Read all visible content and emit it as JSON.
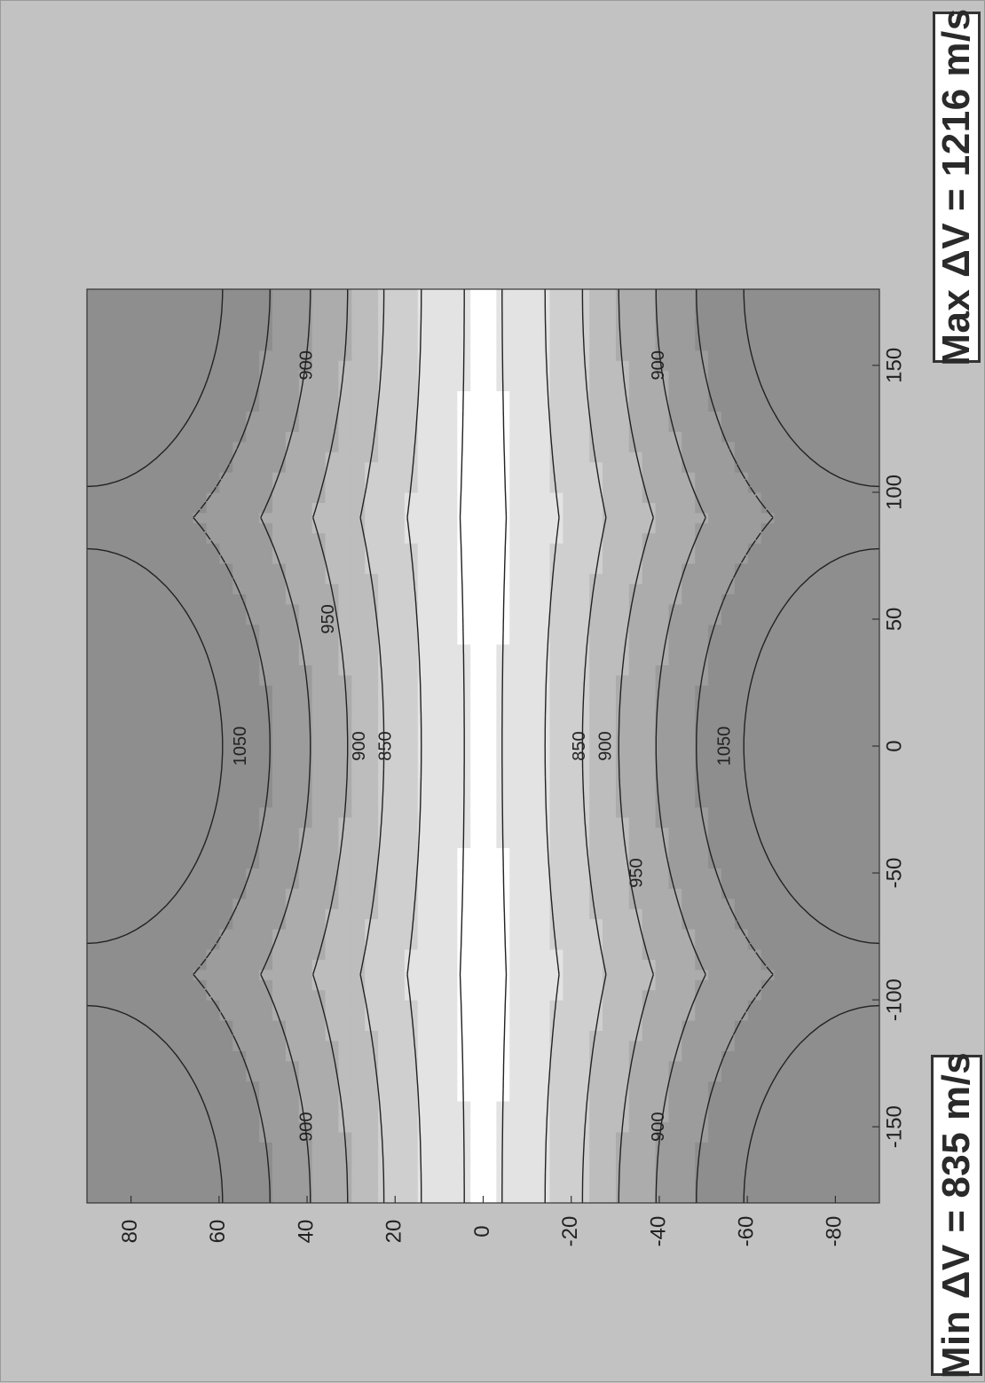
{
  "annotations": {
    "max_label": "Max ΔV = 1216 m/s",
    "min_label": "Min ΔV = 835 m/s"
  },
  "chart_data": {
    "type": "heatmap",
    "subtype": "contour",
    "orientation": "rotated-90-ccw",
    "x_axis_ticks": [
      -150,
      -100,
      -50,
      0,
      50,
      100,
      150
    ],
    "y_axis_ticks": [
      80,
      60,
      40,
      20,
      0,
      -20,
      -40,
      -60,
      -80
    ],
    "xlim": [
      -180,
      180
    ],
    "ylim": [
      -90,
      90
    ],
    "grid": false,
    "legend": "none",
    "contour_levels": [
      850,
      900,
      950,
      1000,
      1050,
      1100,
      1150
    ],
    "value_range": {
      "min": 835,
      "max": 1216
    },
    "maxima_locations": [
      {
        "x": 0,
        "y": 80
      },
      {
        "x": 0,
        "y": -80
      },
      {
        "x": 180,
        "y": 80
      },
      {
        "x": 180,
        "y": -80
      },
      {
        "x": -180,
        "y": 80
      },
      {
        "x": -180,
        "y": -80
      }
    ],
    "minima_regions": [
      {
        "x": 90,
        "y": 0
      },
      {
        "x": -90,
        "y": 0
      }
    ],
    "fill_colors": [
      "#ffffff",
      "#e3e3e3",
      "#cfcfcf",
      "#bdbdbd",
      "#acacac",
      "#9c9c9c",
      "#8e8e8e"
    ]
  }
}
